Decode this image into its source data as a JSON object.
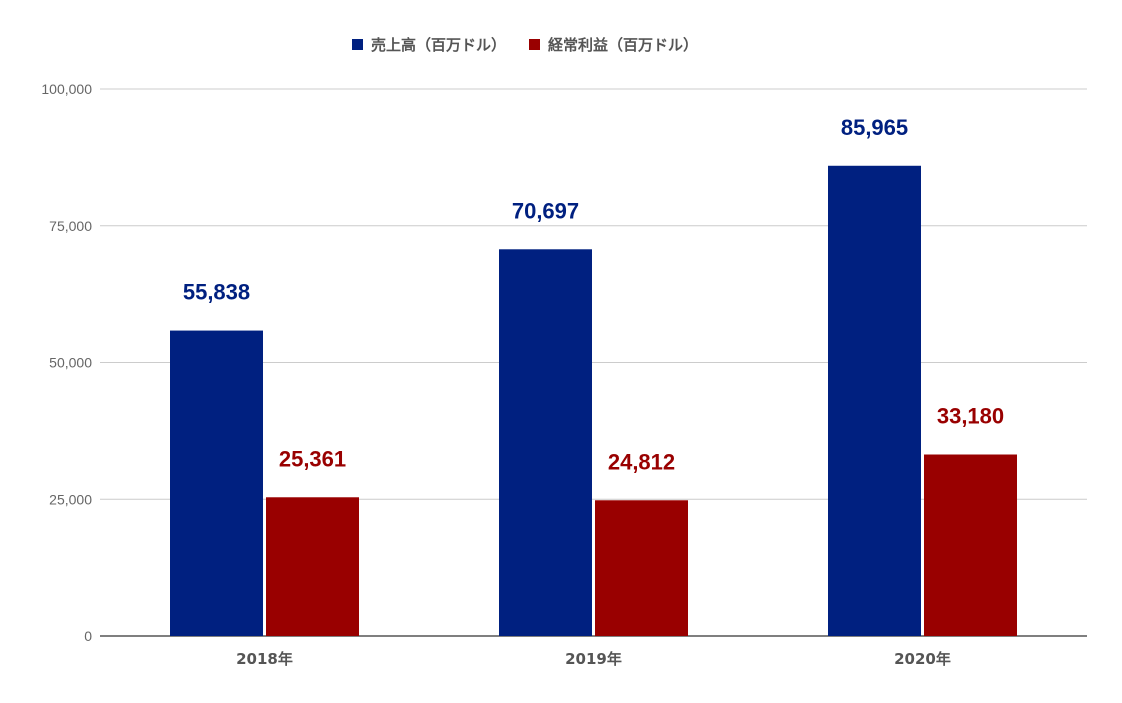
{
  "chart_data": {
    "type": "bar",
    "title": "",
    "xlabel": "",
    "ylabel": "",
    "categories": [
      "2018年",
      "2019年",
      "2020年"
    ],
    "series": [
      {
        "name": "売上高（百万ドル）",
        "color": "#002080",
        "values": [
          55838,
          70697,
          85965
        ]
      },
      {
        "name": "経常利益（百万ドル）",
        "color": "#990000",
        "values": [
          25361,
          24812,
          33180
        ]
      }
    ],
    "ylim": [
      0,
      100000
    ],
    "yticks": [
      0,
      25000,
      50000,
      75000,
      100000
    ],
    "ytick_labels": [
      "0",
      "25,000",
      "50,000",
      "75,000",
      "100,000"
    ],
    "data_labels": [
      [
        "55,838",
        "70,697",
        "85,965"
      ],
      [
        "25,361",
        "24,812",
        "33,180"
      ]
    ],
    "grid": true,
    "legend_position": "top"
  }
}
